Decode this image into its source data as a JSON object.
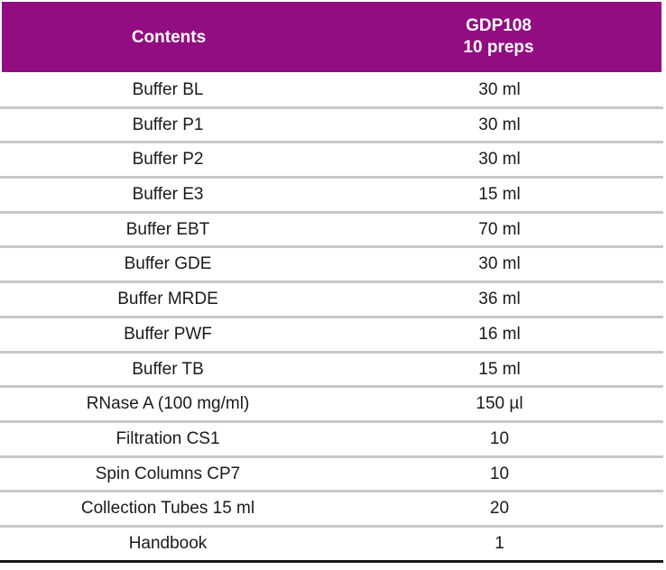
{
  "header": {
    "col1": "Contents",
    "col2_line1": "GDP108",
    "col2_line2": "10 preps"
  },
  "rows": [
    {
      "item": "Buffer BL",
      "amount": "30 ml"
    },
    {
      "item": "Buffer P1",
      "amount": "30 ml"
    },
    {
      "item": "Buffer P2",
      "amount": "30 ml"
    },
    {
      "item": "Buffer E3",
      "amount": "15 ml"
    },
    {
      "item": "Buffer EBT",
      "amount": "70 ml"
    },
    {
      "item": "Buffer GDE",
      "amount": "30 ml"
    },
    {
      "item": "Buffer MRDE",
      "amount": "36 ml"
    },
    {
      "item": "Buffer PWF",
      "amount": "16 ml"
    },
    {
      "item": "Buffer TB",
      "amount": "15 ml"
    },
    {
      "item": "RNase A (100 mg/ml)",
      "amount": "150 µl"
    },
    {
      "item": "Filtration CS1",
      "amount": "10"
    },
    {
      "item": "Spin Columns CP7",
      "amount": "10"
    },
    {
      "item": "Collection Tubes 15 ml",
      "amount": "20"
    },
    {
      "item": "Handbook",
      "amount": "1"
    }
  ],
  "colors": {
    "header_bg": "#920c82",
    "header_text": "#ffffff",
    "row_divider": "#c8c8c8",
    "bottom_rule": "#1a1a1a"
  }
}
